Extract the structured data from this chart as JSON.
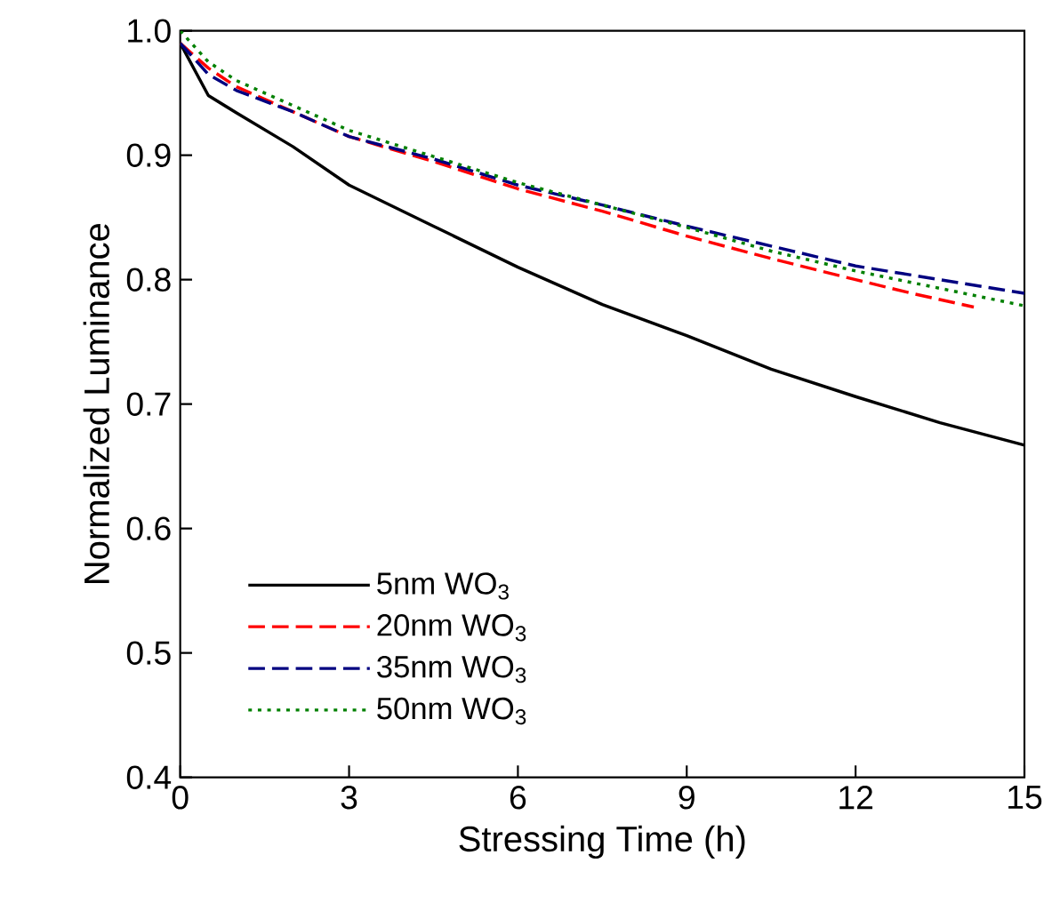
{
  "chart_data": {
    "type": "line",
    "xlabel": "Stressing Time (h)",
    "ylabel": "Normalized Luminance",
    "xlim": [
      0,
      15
    ],
    "ylim": [
      0.4,
      1.0
    ],
    "xticks": [
      0,
      3,
      6,
      9,
      12,
      15
    ],
    "yticks": [
      0.4,
      0.5,
      0.6,
      0.7,
      0.8,
      0.9,
      {
        "value": 1,
        "label": "1.0"
      }
    ],
    "grid": false,
    "legend": "bottom left",
    "marker": "none",
    "series": [
      {
        "name": "5nm WO$_{3}$",
        "color": "#000000",
        "line_style": "solid",
        "x": [
          0,
          0.5,
          1,
          2,
          3,
          4.5,
          6,
          7.5,
          9,
          10.5,
          12,
          13.5,
          15
        ],
        "values": [
          0.99,
          0.948,
          0.934,
          0.907,
          0.876,
          0.843,
          0.81,
          0.78,
          0.755,
          0.728,
          0.706,
          0.685,
          0.667
        ]
      },
      {
        "name": "20nm WO$_{3}$",
        "color": "#ff0000",
        "line_style": "dashed",
        "x": [
          0,
          0.5,
          1,
          2,
          3,
          4.5,
          6,
          7.5,
          9,
          10.5,
          12,
          13,
          14.1
        ],
        "values": [
          0.99,
          0.97,
          0.955,
          0.935,
          0.915,
          0.895,
          0.873,
          0.855,
          0.835,
          0.817,
          0.8,
          0.789,
          0.778
        ]
      },
      {
        "name": "35nm WO$_{3}$",
        "color": "#000080",
        "line_style": "dashed",
        "x": [
          0,
          0.5,
          1,
          2,
          3,
          4.5,
          6,
          7.5,
          9,
          10.5,
          12,
          13.5,
          15
        ],
        "values": [
          0.99,
          0.965,
          0.952,
          0.935,
          0.915,
          0.897,
          0.876,
          0.86,
          0.843,
          0.827,
          0.811,
          0.8,
          0.789
        ]
      },
      {
        "name": "50nm WO$_{3}$",
        "color": "#008000",
        "line_style": "dotted",
        "x": [
          0,
          0.5,
          1,
          2,
          3,
          4.5,
          6,
          7.5,
          9,
          10.5,
          12,
          13.5,
          15
        ],
        "values": [
          1.0,
          0.975,
          0.96,
          0.94,
          0.92,
          0.899,
          0.878,
          0.86,
          0.842,
          0.823,
          0.807,
          0.793,
          0.779
        ]
      }
    ]
  }
}
